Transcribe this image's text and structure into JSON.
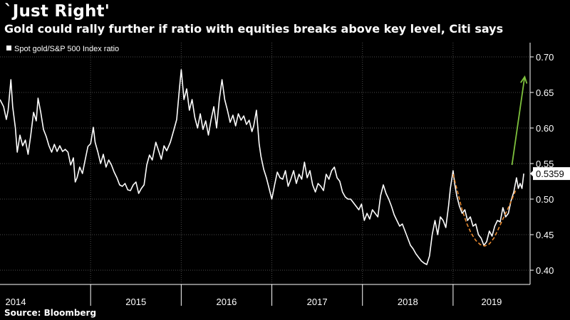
{
  "chart_data": {
    "type": "line",
    "title": "`Just Right'",
    "subtitle": "Gold could rally further if ratio with equities breaks above key level, Citi says",
    "source": "Source: Bloomberg",
    "legend": {
      "placement": "top-left",
      "entries": [
        "Spot gold/S&P 500 Index ratio"
      ]
    },
    "ylim": [
      0.38,
      0.72
    ],
    "yticks": [
      "0.40",
      "0.45",
      "0.50",
      "0.55",
      "0.60",
      "0.65",
      "0.70"
    ],
    "grid": true,
    "x_range": [
      2014.0,
      2019.85
    ],
    "x_year_labels": [
      "2014",
      "2015",
      "2016",
      "2017",
      "2018",
      "2019"
    ],
    "last_value_label": "0.5359",
    "colors": {
      "series": "#ffffff",
      "annotation_curve": "#e8892f",
      "annotation_arrow": "#7ec13d",
      "grid": "#4a4a4a",
      "background": "#000000"
    },
    "series": [
      {
        "name": "Spot gold/S&P 500 Index ratio",
        "points": [
          [
            2014.0,
            0.64
          ],
          [
            2014.04,
            0.63
          ],
          [
            2014.07,
            0.612
          ],
          [
            2014.09,
            0.625
          ],
          [
            2014.12,
            0.668
          ],
          [
            2014.14,
            0.63
          ],
          [
            2014.17,
            0.6
          ],
          [
            2014.19,
            0.566
          ],
          [
            2014.22,
            0.59
          ],
          [
            2014.25,
            0.575
          ],
          [
            2014.28,
            0.583
          ],
          [
            2014.31,
            0.563
          ],
          [
            2014.34,
            0.59
          ],
          [
            2014.37,
            0.622
          ],
          [
            2014.4,
            0.61
          ],
          [
            2014.42,
            0.642
          ],
          [
            2014.45,
            0.622
          ],
          [
            2014.48,
            0.598
          ],
          [
            2014.51,
            0.588
          ],
          [
            2014.54,
            0.575
          ],
          [
            2014.57,
            0.566
          ],
          [
            2014.6,
            0.577
          ],
          [
            2014.63,
            0.567
          ],
          [
            2014.66,
            0.575
          ],
          [
            2014.69,
            0.567
          ],
          [
            2014.72,
            0.57
          ],
          [
            2014.75,
            0.566
          ],
          [
            2014.78,
            0.548
          ],
          [
            2014.81,
            0.558
          ],
          [
            2014.83,
            0.524
          ],
          [
            2014.85,
            0.53
          ],
          [
            2014.88,
            0.545
          ],
          [
            2014.91,
            0.536
          ],
          [
            2014.94,
            0.555
          ],
          [
            2014.97,
            0.574
          ],
          [
            2015.0,
            0.578
          ],
          [
            2015.03,
            0.601
          ],
          [
            2015.05,
            0.58
          ],
          [
            2015.08,
            0.566
          ],
          [
            2015.11,
            0.55
          ],
          [
            2015.14,
            0.563
          ],
          [
            2015.17,
            0.545
          ],
          [
            2015.2,
            0.555
          ],
          [
            2015.23,
            0.548
          ],
          [
            2015.26,
            0.538
          ],
          [
            2015.29,
            0.53
          ],
          [
            2015.32,
            0.52
          ],
          [
            2015.35,
            0.518
          ],
          [
            2015.38,
            0.522
          ],
          [
            2015.41,
            0.513
          ],
          [
            2015.44,
            0.512
          ],
          [
            2015.47,
            0.52
          ],
          [
            2015.5,
            0.524
          ],
          [
            2015.53,
            0.508
          ],
          [
            2015.56,
            0.515
          ],
          [
            2015.59,
            0.52
          ],
          [
            2015.62,
            0.548
          ],
          [
            2015.65,
            0.562
          ],
          [
            2015.68,
            0.555
          ],
          [
            2015.72,
            0.58
          ],
          [
            2015.75,
            0.568
          ],
          [
            2015.78,
            0.556
          ],
          [
            2015.81,
            0.575
          ],
          [
            2015.84,
            0.568
          ],
          [
            2015.88,
            0.58
          ],
          [
            2015.92,
            0.598
          ],
          [
            2015.95,
            0.612
          ],
          [
            2015.98,
            0.655
          ],
          [
            2016.0,
            0.682
          ],
          [
            2016.03,
            0.64
          ],
          [
            2016.06,
            0.655
          ],
          [
            2016.09,
            0.625
          ],
          [
            2016.12,
            0.64
          ],
          [
            2016.15,
            0.615
          ],
          [
            2016.18,
            0.6
          ],
          [
            2016.21,
            0.62
          ],
          [
            2016.24,
            0.598
          ],
          [
            2016.27,
            0.61
          ],
          [
            2016.3,
            0.59
          ],
          [
            2016.33,
            0.612
          ],
          [
            2016.36,
            0.63
          ],
          [
            2016.39,
            0.6
          ],
          [
            2016.42,
            0.64
          ],
          [
            2016.45,
            0.668
          ],
          [
            2016.48,
            0.64
          ],
          [
            2016.51,
            0.625
          ],
          [
            2016.54,
            0.608
          ],
          [
            2016.57,
            0.618
          ],
          [
            2016.6,
            0.603
          ],
          [
            2016.63,
            0.62
          ],
          [
            2016.66,
            0.611
          ],
          [
            2016.69,
            0.617
          ],
          [
            2016.72,
            0.605
          ],
          [
            2016.75,
            0.611
          ],
          [
            2016.78,
            0.595
          ],
          [
            2016.8,
            0.603
          ],
          [
            2016.83,
            0.625
          ],
          [
            2016.86,
            0.578
          ],
          [
            2016.88,
            0.56
          ],
          [
            2016.91,
            0.542
          ],
          [
            2016.94,
            0.53
          ],
          [
            2016.97,
            0.515
          ],
          [
            2017.0,
            0.5
          ],
          [
            2017.03,
            0.52
          ],
          [
            2017.06,
            0.538
          ],
          [
            2017.09,
            0.53
          ],
          [
            2017.12,
            0.528
          ],
          [
            2017.15,
            0.54
          ],
          [
            2017.18,
            0.518
          ],
          [
            2017.21,
            0.528
          ],
          [
            2017.24,
            0.54
          ],
          [
            2017.27,
            0.522
          ],
          [
            2017.3,
            0.535
          ],
          [
            2017.33,
            0.528
          ],
          [
            2017.36,
            0.552
          ],
          [
            2017.39,
            0.53
          ],
          [
            2017.42,
            0.54
          ],
          [
            2017.45,
            0.52
          ],
          [
            2017.48,
            0.51
          ],
          [
            2017.51,
            0.522
          ],
          [
            2017.54,
            0.518
          ],
          [
            2017.57,
            0.512
          ],
          [
            2017.6,
            0.535
          ],
          [
            2017.63,
            0.528
          ],
          [
            2017.66,
            0.54
          ],
          [
            2017.69,
            0.545
          ],
          [
            2017.72,
            0.53
          ],
          [
            2017.75,
            0.525
          ],
          [
            2017.78,
            0.51
          ],
          [
            2017.81,
            0.503
          ],
          [
            2017.84,
            0.5
          ],
          [
            2017.87,
            0.5
          ],
          [
            2017.9,
            0.495
          ],
          [
            2017.93,
            0.49
          ],
          [
            2017.96,
            0.485
          ],
          [
            2017.99,
            0.493
          ],
          [
            2018.02,
            0.47
          ],
          [
            2018.05,
            0.48
          ],
          [
            2018.08,
            0.472
          ],
          [
            2018.11,
            0.485
          ],
          [
            2018.14,
            0.48
          ],
          [
            2018.17,
            0.475
          ],
          [
            2018.2,
            0.505
          ],
          [
            2018.23,
            0.52
          ],
          [
            2018.26,
            0.508
          ],
          [
            2018.29,
            0.5
          ],
          [
            2018.32,
            0.49
          ],
          [
            2018.35,
            0.478
          ],
          [
            2018.38,
            0.47
          ],
          [
            2018.41,
            0.462
          ],
          [
            2018.44,
            0.465
          ],
          [
            2018.47,
            0.455
          ],
          [
            2018.5,
            0.445
          ],
          [
            2018.53,
            0.435
          ],
          [
            2018.56,
            0.43
          ],
          [
            2018.59,
            0.423
          ],
          [
            2018.62,
            0.418
          ],
          [
            2018.65,
            0.413
          ],
          [
            2018.68,
            0.41
          ],
          [
            2018.71,
            0.408
          ],
          [
            2018.74,
            0.42
          ],
          [
            2018.77,
            0.45
          ],
          [
            2018.8,
            0.47
          ],
          [
            2018.83,
            0.45
          ],
          [
            2018.86,
            0.475
          ],
          [
            2018.89,
            0.47
          ],
          [
            2018.92,
            0.46
          ],
          [
            2018.95,
            0.49
          ],
          [
            2018.97,
            0.515
          ],
          [
            2019.0,
            0.54
          ],
          [
            2019.02,
            0.52
          ],
          [
            2019.04,
            0.505
          ],
          [
            2019.07,
            0.49
          ],
          [
            2019.1,
            0.48
          ],
          [
            2019.13,
            0.485
          ],
          [
            2019.16,
            0.47
          ],
          [
            2019.19,
            0.475
          ],
          [
            2019.22,
            0.462
          ],
          [
            2019.25,
            0.465
          ],
          [
            2019.28,
            0.45
          ],
          [
            2019.31,
            0.445
          ],
          [
            2019.34,
            0.435
          ],
          [
            2019.37,
            0.44
          ],
          [
            2019.4,
            0.455
          ],
          [
            2019.43,
            0.448
          ],
          [
            2019.46,
            0.462
          ],
          [
            2019.49,
            0.47
          ],
          [
            2019.52,
            0.468
          ],
          [
            2019.55,
            0.488
          ],
          [
            2019.58,
            0.475
          ],
          [
            2019.61,
            0.48
          ],
          [
            2019.64,
            0.498
          ],
          [
            2019.67,
            0.51
          ],
          [
            2019.7,
            0.53
          ],
          [
            2019.72,
            0.515
          ],
          [
            2019.74,
            0.522
          ],
          [
            2019.76,
            0.515
          ],
          [
            2019.78,
            0.5359
          ]
        ]
      }
    ],
    "annotations": {
      "cup_curve": [
        [
          2019.0,
          0.535
        ],
        [
          2019.05,
          0.51
        ],
        [
          2019.1,
          0.485
        ],
        [
          2019.15,
          0.466
        ],
        [
          2019.2,
          0.452
        ],
        [
          2019.25,
          0.442
        ],
        [
          2019.3,
          0.436
        ],
        [
          2019.35,
          0.434
        ],
        [
          2019.4,
          0.437
        ],
        [
          2019.45,
          0.445
        ],
        [
          2019.5,
          0.458
        ],
        [
          2019.55,
          0.472
        ],
        [
          2019.6,
          0.485
        ],
        [
          2019.65,
          0.5
        ],
        [
          2019.7,
          0.515
        ]
      ],
      "arrow": {
        "from": [
          2019.65,
          0.548
        ],
        "to": [
          2019.79,
          0.672
        ]
      }
    }
  }
}
